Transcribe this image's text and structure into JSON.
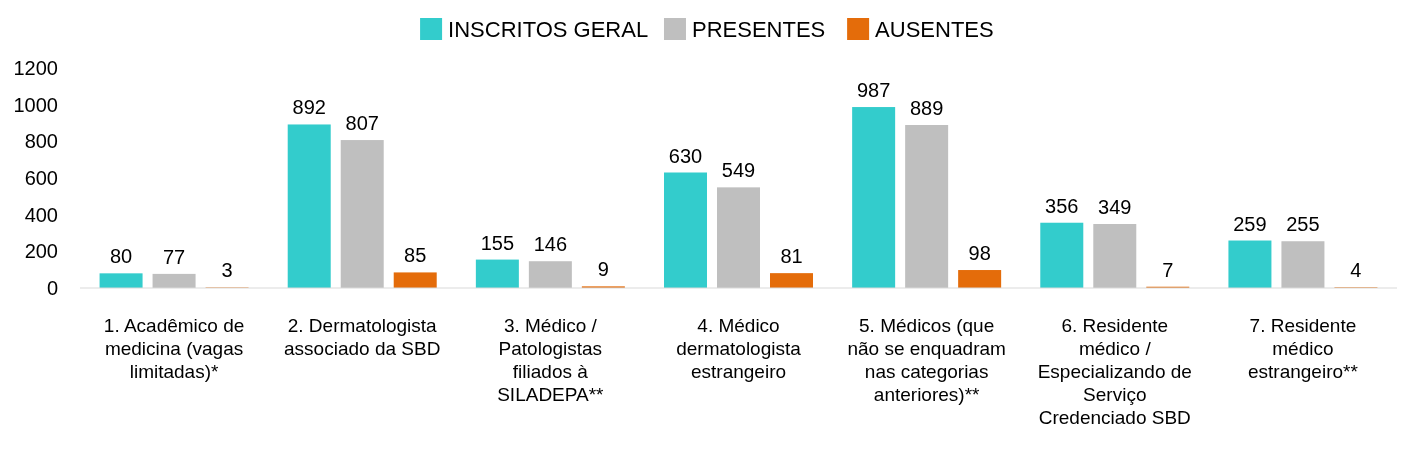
{
  "chart_data": {
    "type": "bar",
    "categories": [
      "1. Acadêmico de medicina (vagas limitadas)*",
      "2. Dermatologista associado da SBD",
      "3. Médico / Patologistas filiados à SILADEPA**",
      "4. Médico dermatologista estrangeiro",
      "5. Médicos (que não se enquadram nas categorias anteriores)**",
      "6. Residente médico / Especializando de Serviço Credenciado SBD",
      "7. Residente médico estrangeiro**"
    ],
    "series": [
      {
        "name": "INSCRITOS GERAL",
        "color": "#33cccc",
        "values": [
          80,
          892,
          155,
          630,
          987,
          356,
          259
        ]
      },
      {
        "name": "PRESENTES",
        "color": "#bfbfbf",
        "values": [
          77,
          807,
          146,
          549,
          889,
          349,
          255
        ]
      },
      {
        "name": "AUSENTES",
        "color": "#e46c0a",
        "values": [
          3,
          85,
          9,
          81,
          98,
          7,
          4
        ]
      }
    ],
    "ylim": [
      0,
      1200
    ],
    "yticks": [
      0,
      200,
      400,
      600,
      800,
      1000,
      1200
    ],
    "data_labels": true,
    "legend": "top",
    "grid": false
  }
}
